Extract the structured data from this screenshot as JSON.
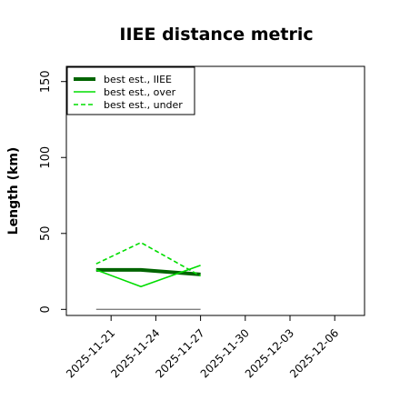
{
  "chart_data": {
    "type": "line",
    "title": "IIEE distance metric",
    "xlabel": "",
    "ylabel": "Length (km)",
    "x": [
      "2025-11-20",
      "2025-11-23",
      "2025-11-27"
    ],
    "series": [
      {
        "name": "best est., IIEE",
        "color": "#006400",
        "style": "solid-thick",
        "values": [
          26,
          26,
          23
        ]
      },
      {
        "name": "best est., over",
        "color": "#00dd00",
        "style": "solid",
        "values": [
          26,
          15,
          29
        ]
      },
      {
        "name": "best est., under",
        "color": "#00dd00",
        "style": "dashed",
        "values": [
          30,
          44,
          22
        ]
      }
    ],
    "zero_line": {
      "color": "#808080",
      "x": [
        "2025-11-20",
        "2025-11-27"
      ],
      "value": 0
    },
    "xticks": [
      "2025-11-21",
      "2025-11-24",
      "2025-11-27",
      "2025-11-30",
      "2025-12-03",
      "2025-12-06"
    ],
    "yticks": [
      0,
      50,
      100,
      150
    ],
    "xlim": [
      "2025-11-18",
      "2025-12-08"
    ],
    "ylim": [
      -4,
      160
    ],
    "grid": false,
    "legend_position": "top-left"
  }
}
